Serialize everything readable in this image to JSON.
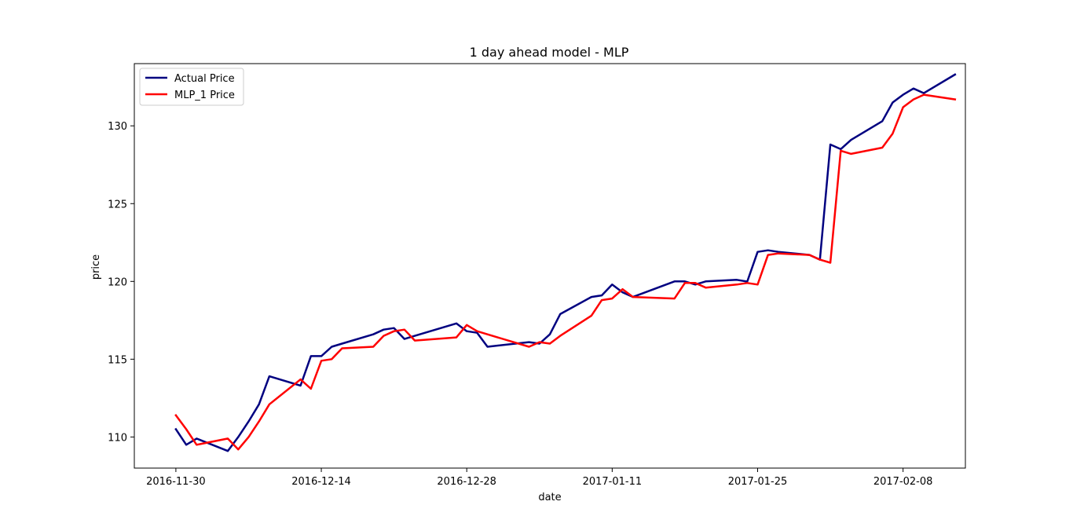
{
  "chart_data": {
    "type": "line",
    "title": "1 day ahead model - MLP",
    "xlabel": "date",
    "ylabel": "price",
    "xlim": [
      "2016-11-26",
      "2017-02-14"
    ],
    "ylim": [
      108,
      134
    ],
    "x_ticks": [
      "2016-11-30",
      "2016-12-14",
      "2016-12-28",
      "2017-01-11",
      "2017-01-25",
      "2017-02-08"
    ],
    "y_ticks": [
      110,
      115,
      120,
      125,
      130
    ],
    "grid": false,
    "legend_position": "top-left",
    "x": [
      "2016-11-30",
      "2016-12-01",
      "2016-12-02",
      "2016-12-05",
      "2016-12-06",
      "2016-12-07",
      "2016-12-08",
      "2016-12-09",
      "2016-12-12",
      "2016-12-13",
      "2016-12-14",
      "2016-12-15",
      "2016-12-16",
      "2016-12-19",
      "2016-12-20",
      "2016-12-21",
      "2016-12-22",
      "2016-12-23",
      "2016-12-27",
      "2016-12-28",
      "2016-12-29",
      "2016-12-30",
      "2017-01-03",
      "2017-01-04",
      "2017-01-05",
      "2017-01-06",
      "2017-01-09",
      "2017-01-10",
      "2017-01-11",
      "2017-01-12",
      "2017-01-13",
      "2017-01-17",
      "2017-01-18",
      "2017-01-19",
      "2017-01-20",
      "2017-01-23",
      "2017-01-24",
      "2017-01-25",
      "2017-01-26",
      "2017-01-27",
      "2017-01-30",
      "2017-01-31",
      "2017-02-01",
      "2017-02-02",
      "2017-02-03",
      "2017-02-06",
      "2017-02-07",
      "2017-02-08",
      "2017-02-09",
      "2017-02-10",
      "2017-02-13"
    ],
    "series": [
      {
        "name": "Actual Price",
        "color": "#000080",
        "values": [
          110.5,
          109.5,
          109.9,
          109.1,
          110.0,
          111.0,
          112.1,
          113.9,
          113.3,
          115.2,
          115.2,
          115.8,
          116.0,
          116.6,
          116.9,
          117.0,
          116.3,
          116.5,
          117.3,
          116.8,
          116.7,
          115.8,
          116.1,
          116.0,
          116.6,
          117.9,
          119.0,
          119.1,
          119.8,
          119.3,
          119.0,
          120.0,
          120.0,
          119.8,
          120.0,
          120.1,
          119.99,
          121.9,
          122.0,
          121.9,
          121.7,
          121.4,
          128.8,
          128.5,
          129.1,
          130.3,
          131.5,
          132.0,
          132.4,
          132.1,
          133.3
        ]
      },
      {
        "name": "MLP_1 Price",
        "color": "#ff0000",
        "values": [
          111.4,
          110.5,
          109.5,
          109.9,
          109.2,
          110.0,
          111.0,
          112.1,
          113.7,
          113.1,
          114.9,
          115.0,
          115.7,
          115.8,
          116.5,
          116.8,
          116.9,
          116.2,
          116.4,
          117.2,
          116.8,
          116.6,
          115.8,
          116.1,
          116.0,
          116.5,
          117.8,
          118.8,
          118.9,
          119.5,
          119.0,
          118.9,
          119.9,
          119.9,
          119.6,
          119.8,
          119.9,
          119.8,
          121.7,
          121.8,
          121.7,
          121.4,
          121.2,
          128.4,
          128.2,
          128.6,
          129.5,
          131.2,
          131.7,
          132.0,
          131.7
        ]
      }
    ]
  }
}
